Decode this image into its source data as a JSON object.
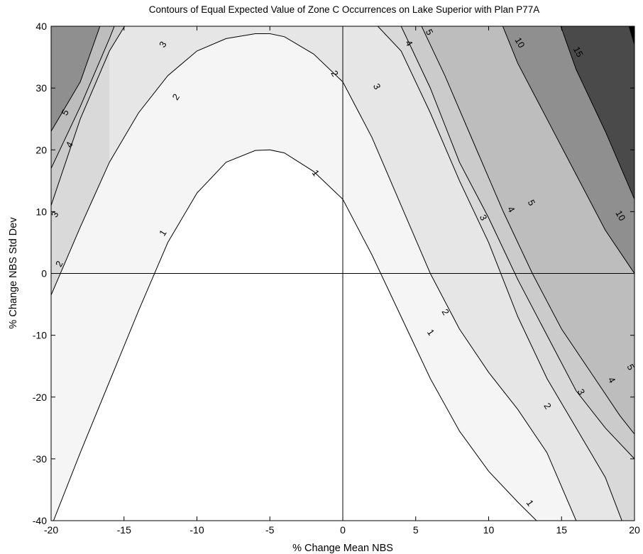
{
  "chart_data": {
    "type": "contour",
    "title": "Contours of Equal Expected Value of Zone C Occurrences on Lake Superior with Plan P77A",
    "xlabel": "% Change Mean NBS",
    "ylabel": "% Change NBS Std Dev",
    "xlim": [
      -20,
      20
    ],
    "ylim": [
      -40,
      40
    ],
    "x_ticks": [
      "-20",
      "-15",
      "-10",
      "-5",
      "0",
      "5",
      "10",
      "15",
      "20"
    ],
    "y_ticks": [
      "-40",
      "-30",
      "-20",
      "-10",
      "0",
      "10",
      "20",
      "30",
      "40"
    ],
    "reference_lines": [
      {
        "axis": "x",
        "value": 0
      },
      {
        "axis": "y",
        "value": 0
      }
    ],
    "grid": false,
    "levels": [
      {
        "level": 1,
        "label": "1",
        "fill": "#ffffff",
        "points": [
          [
            -20,
            -41
          ],
          [
            -18,
            -29
          ],
          [
            -16,
            -17.5
          ],
          [
            -14,
            -6
          ],
          [
            -12,
            5
          ],
          [
            -10,
            13
          ],
          [
            -8,
            18
          ],
          [
            -6,
            19.9
          ],
          [
            -5,
            20
          ],
          [
            -4,
            19.5
          ],
          [
            -2,
            16.5
          ],
          [
            0,
            12
          ],
          [
            2,
            3
          ],
          [
            4,
            -7
          ],
          [
            6,
            -17
          ],
          [
            8,
            -25.5
          ],
          [
            10,
            -32
          ],
          [
            12,
            -37
          ],
          [
            13.5,
            -40.5
          ]
        ]
      },
      {
        "level": 2,
        "label": "2",
        "fill": "#f5f5f5",
        "points": [
          [
            -21,
            -11.7
          ],
          [
            -20,
            -3.5
          ],
          [
            -18,
            7.5
          ],
          [
            -16,
            18
          ],
          [
            -14,
            26
          ],
          [
            -12,
            32
          ],
          [
            -10,
            36
          ],
          [
            -8,
            38
          ],
          [
            -6,
            38.8
          ],
          [
            -5,
            38.8
          ],
          [
            -4,
            38.3
          ],
          [
            -2,
            35.5
          ],
          [
            0,
            31
          ],
          [
            2,
            22
          ],
          [
            4,
            11
          ],
          [
            6,
            0
          ],
          [
            8,
            -9
          ],
          [
            10,
            -16
          ],
          [
            12,
            -22
          ],
          [
            14,
            -29
          ],
          [
            16,
            -40
          ],
          [
            16.2,
            -41
          ]
        ]
      },
      {
        "level": 3,
        "label": "3",
        "fill": "#e6e6e6",
        "points": [
          [
            -21,
            5.5
          ],
          [
            -20,
            11
          ],
          [
            -18,
            25
          ],
          [
            -16,
            36
          ],
          [
            -14.7,
            41
          ],
          [
            2,
            41
          ],
          [
            4,
            36
          ],
          [
            6,
            26
          ],
          [
            8,
            15
          ],
          [
            10,
            5
          ],
          [
            12,
            -7
          ],
          [
            14,
            -17
          ],
          [
            16,
            -25
          ],
          [
            18,
            -33
          ],
          [
            19.3,
            -41
          ]
        ]
      },
      {
        "level": 4,
        "label": "4",
        "fill": "#d9d9d9",
        "points": [
          [
            -21,
            14
          ],
          [
            -20,
            17
          ],
          [
            -18,
            27
          ],
          [
            -16,
            38
          ],
          [
            -15.5,
            41
          ],
          [
            3.8,
            41
          ],
          [
            6,
            30
          ],
          [
            8,
            18
          ],
          [
            10,
            9
          ],
          [
            12,
            -1
          ],
          [
            14,
            -10
          ],
          [
            16,
            -19
          ],
          [
            18,
            -25
          ],
          [
            20,
            -30
          ],
          [
            21,
            -33
          ]
        ]
      },
      {
        "level": 5,
        "label": "5",
        "fill": "#cbcbcb",
        "points": [
          [
            -21,
            18
          ],
          [
            -20,
            23
          ],
          [
            -18,
            31
          ],
          [
            -16.5,
            41
          ],
          [
            5.2,
            41
          ],
          [
            7,
            32
          ],
          [
            9,
            21
          ],
          [
            11,
            10
          ],
          [
            13,
            0
          ],
          [
            15,
            -9
          ],
          [
            17,
            -16
          ],
          [
            19,
            -23
          ],
          [
            20,
            -26
          ],
          [
            21,
            -29
          ]
        ]
      },
      {
        "level": 10,
        "label": "10",
        "fill": "#aaaaaa",
        "points": [
          [
            10.8,
            41
          ],
          [
            12,
            34
          ],
          [
            14,
            25
          ],
          [
            16,
            16
          ],
          [
            18,
            7
          ],
          [
            20,
            0
          ],
          [
            21,
            -3
          ]
        ]
      },
      {
        "level": 15,
        "label": "15",
        "fill": "#646464",
        "points": [
          [
            14.8,
            41
          ],
          [
            16,
            33
          ],
          [
            18,
            23
          ],
          [
            20,
            12
          ],
          [
            21,
            6
          ]
        ]
      },
      {
        "level": 20,
        "label": "",
        "fill": "#141414",
        "points": [
          [
            19.5,
            41
          ],
          [
            20,
            37
          ]
        ]
      }
    ],
    "contour_labels": [
      {
        "text": "1",
        "x": -12.3,
        "y": 6.5,
        "rot": -58
      },
      {
        "text": "1",
        "x": -1.9,
        "y": 16.2,
        "rot": 55
      },
      {
        "text": "1",
        "x": 6.0,
        "y": -9.6,
        "rot": 55
      },
      {
        "text": "1",
        "x": 12.8,
        "y": -37.2,
        "rot": 55
      },
      {
        "text": "2",
        "x": -19.4,
        "y": 1.5,
        "rot": -62
      },
      {
        "text": "2",
        "x": -11.4,
        "y": 28.5,
        "rot": -56
      },
      {
        "text": "2",
        "x": -0.6,
        "y": 32.3,
        "rot": 58
      },
      {
        "text": "2",
        "x": 7.0,
        "y": -6.3,
        "rot": 58
      },
      {
        "text": "2",
        "x": 14.0,
        "y": -21.5,
        "rot": 58
      },
      {
        "text": "3",
        "x": -19.7,
        "y": 9.5,
        "rot": -62
      },
      {
        "text": "3",
        "x": -12.3,
        "y": 37.0,
        "rot": -58
      },
      {
        "text": "3",
        "x": 2.3,
        "y": 30.2,
        "rot": 62
      },
      {
        "text": "3",
        "x": 9.6,
        "y": 9.0,
        "rot": 62
      },
      {
        "text": "3",
        "x": 16.3,
        "y": -19.2,
        "rot": 62
      },
      {
        "text": "4",
        "x": -18.7,
        "y": 20.8,
        "rot": -62
      },
      {
        "text": "4",
        "x": 4.5,
        "y": 37.2,
        "rot": 62
      },
      {
        "text": "4",
        "x": 11.5,
        "y": 10.3,
        "rot": 62
      },
      {
        "text": "4",
        "x": 18.4,
        "y": -17.3,
        "rot": 62
      },
      {
        "text": "5",
        "x": -19.0,
        "y": 26.0,
        "rot": -62
      },
      {
        "text": "5",
        "x": 5.9,
        "y": 39.0,
        "rot": 62
      },
      {
        "text": "5",
        "x": 12.9,
        "y": 11.4,
        "rot": 62
      },
      {
        "text": "5",
        "x": 19.7,
        "y": -15.2,
        "rot": 62
      },
      {
        "text": "10",
        "x": 12.1,
        "y": 37.3,
        "rot": 60
      },
      {
        "text": "10",
        "x": 19.0,
        "y": 9.3,
        "rot": 60
      },
      {
        "text": "15",
        "x": 16.1,
        "y": 35.8,
        "rot": 62
      }
    ]
  }
}
